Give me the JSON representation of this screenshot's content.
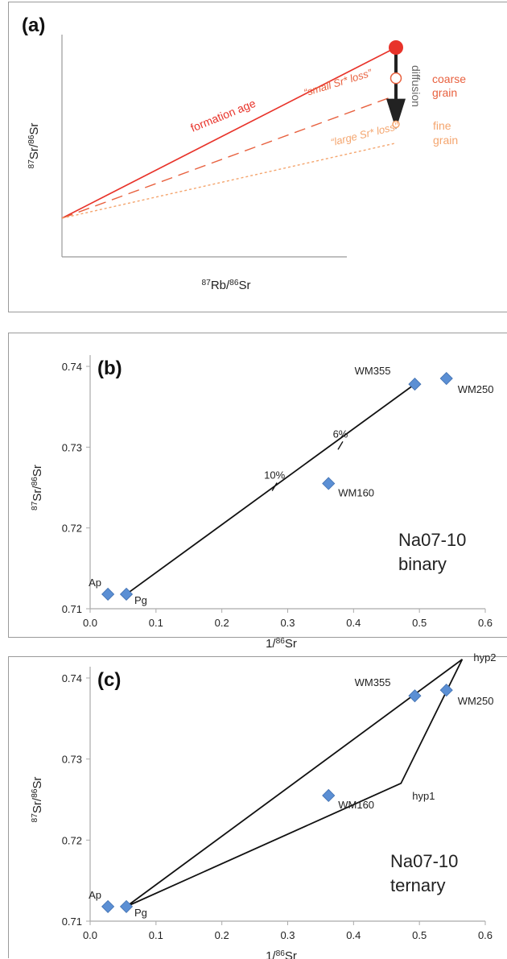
{
  "chart_data": [
    {
      "type": "line",
      "panel_label": "(a)",
      "xlabel": "87Rb/86Sr",
      "ylabel": "87Sr/86Sr",
      "series": [
        {
          "name": "formation age",
          "style": "solid",
          "color": "#e8332a",
          "x": [
            0,
            1
          ],
          "y": [
            0,
            1
          ]
        },
        {
          "name": "“small Sr* loss”",
          "style": "dashed",
          "color": "#e8613f",
          "x": [
            0,
            1
          ],
          "y": [
            0,
            0.72
          ]
        },
        {
          "name": "“large Sr* loss”",
          "style": "dotted",
          "color": "#f4a56e",
          "x": [
            0,
            1
          ],
          "y": [
            0,
            0.44
          ]
        }
      ],
      "points": [
        {
          "label": "",
          "x": 1,
          "y": 1,
          "style": "filled",
          "color": "#e8332a"
        },
        {
          "label": "coarse grain",
          "x": 1,
          "y": 0.82,
          "style": "open",
          "color": "#e8613f"
        },
        {
          "label": "fine grain",
          "x": 1,
          "y": 0.55,
          "style": "open",
          "color": "#f4a56e"
        }
      ],
      "annotations": {
        "formation": "formation age",
        "small": "“small Sr* loss”",
        "large": "“large Sr* loss”",
        "arrow": "diffusion",
        "coarse_1": "coarse",
        "coarse_2": "grain",
        "fine_1": "fine",
        "fine_2": "grain"
      },
      "colors": {
        "formation": "#e8332a",
        "small": "#e8613f",
        "large": "#f4a56e",
        "arrow": "#222222",
        "arrow_text": "#666666"
      }
    },
    {
      "type": "scatter",
      "panel_label": "(b)",
      "xlabel": "1/86Sr",
      "ylabel": "87Sr/86Sr",
      "xlim": [
        0,
        0.6
      ],
      "ylim": [
        0.71,
        0.74
      ],
      "xticks": [
        "0.0",
        "0.1",
        "0.2",
        "0.3",
        "0.4",
        "0.5",
        "0.6"
      ],
      "yticks": [
        "0.71",
        "0.72",
        "0.73",
        "0.74"
      ],
      "grid": false,
      "points": [
        {
          "label": "Ap",
          "x": 0.027,
          "y": 0.7118
        },
        {
          "label": "Pg",
          "x": 0.055,
          "y": 0.7118
        },
        {
          "label": "WM160",
          "x": 0.362,
          "y": 0.7255
        },
        {
          "label": "WM355",
          "x": 0.493,
          "y": 0.7378
        },
        {
          "label": "WM250",
          "x": 0.541,
          "y": 0.7385
        }
      ],
      "lines": [
        {
          "x": [
            0.055,
            0.493
          ],
          "y": [
            0.7118,
            0.7378
          ]
        }
      ],
      "ticks_on_line": [
        {
          "label": "10%",
          "x": 0.28,
          "y": 0.7251
        },
        {
          "label": "6%",
          "x": 0.38,
          "y": 0.7302
        }
      ],
      "text": [
        "Na07-10",
        "binary"
      ],
      "marker_color": "#5b8fd4"
    },
    {
      "type": "scatter",
      "panel_label": "(c)",
      "xlabel": "1/86Sr",
      "ylabel": "87Sr/86Sr",
      "xlim": [
        0,
        0.6
      ],
      "ylim": [
        0.71,
        0.74
      ],
      "xticks": [
        "0.0",
        "0.1",
        "0.2",
        "0.3",
        "0.4",
        "0.5",
        "0.6"
      ],
      "yticks": [
        "0.71",
        "0.72",
        "0.73",
        "0.74"
      ],
      "grid": false,
      "points": [
        {
          "label": "Ap",
          "x": 0.027,
          "y": 0.7118
        },
        {
          "label": "Pg",
          "x": 0.055,
          "y": 0.7118
        },
        {
          "label": "WM160",
          "x": 0.362,
          "y": 0.7255
        },
        {
          "label": "WM355",
          "x": 0.493,
          "y": 0.7378
        },
        {
          "label": "WM250",
          "x": 0.541,
          "y": 0.7385
        }
      ],
      "polygon": {
        "x": [
          0.055,
          0.565,
          0.472,
          0.055
        ],
        "y": [
          0.7118,
          0.7423,
          0.727,
          0.7118
        ]
      },
      "vertex_labels": [
        {
          "label": "hyp2",
          "x": 0.565,
          "y": 0.7423
        },
        {
          "label": "hyp1",
          "x": 0.472,
          "y": 0.727
        }
      ],
      "text": [
        "Na07-10",
        "ternary"
      ],
      "marker_color": "#5b8fd4"
    }
  ]
}
